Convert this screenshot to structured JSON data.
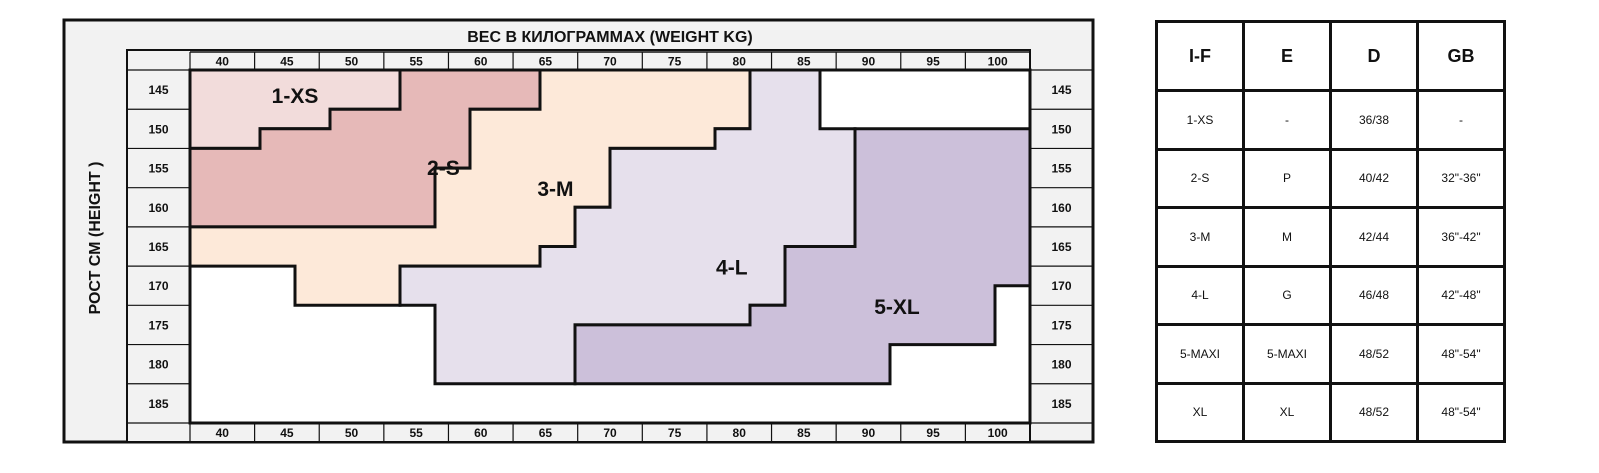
{
  "chart_data": {
    "type": "heatmap",
    "title": "ВЕС В КИЛОГРАММАХ (WEIGHT KG)",
    "xlabel": "ВЕС В КИЛОГРАММАХ (WEIGHT KG)",
    "ylabel": "РОСТ  СМ  (HEIGHT )",
    "x_ticks": [
      40,
      45,
      50,
      55,
      60,
      65,
      70,
      75,
      80,
      85,
      90,
      95,
      100
    ],
    "y_ticks": [
      145,
      150,
      155,
      160,
      165,
      170,
      175,
      180,
      185
    ],
    "xlim": [
      40,
      100
    ],
    "ylim": [
      145,
      185
    ],
    "zones": [
      {
        "label": "1-XS",
        "color": "#f2dcdb",
        "boundary": [
          [
            40,
            145
          ],
          [
            55,
            145
          ],
          [
            55,
            150
          ],
          [
            50,
            150
          ],
          [
            50,
            152.5
          ],
          [
            45,
            152.5
          ],
          [
            45,
            155
          ],
          [
            40,
            155
          ]
        ]
      },
      {
        "label": "2-S",
        "color": "#e6b9b8",
        "boundary": [
          [
            55,
            145
          ],
          [
            65,
            145
          ],
          [
            65,
            150
          ],
          [
            60,
            150
          ],
          [
            60,
            157.5
          ],
          [
            57.5,
            157.5
          ],
          [
            57.5,
            165
          ],
          [
            40,
            165
          ],
          [
            40,
            155
          ],
          [
            45,
            155
          ],
          [
            45,
            152.5
          ],
          [
            50,
            152.5
          ],
          [
            50,
            150
          ],
          [
            55,
            150
          ]
        ]
      },
      {
        "label": "3-M",
        "color": "#fde9d9",
        "boundary": [
          [
            65,
            145
          ],
          [
            80,
            145
          ],
          [
            80,
            152.5
          ],
          [
            77.5,
            152.5
          ],
          [
            77.5,
            155
          ],
          [
            70,
            155
          ],
          [
            70,
            162.5
          ],
          [
            67.5,
            162.5
          ],
          [
            67.5,
            167.5
          ],
          [
            65,
            167.5
          ],
          [
            65,
            170
          ],
          [
            55,
            170
          ],
          [
            55,
            175
          ],
          [
            47.5,
            175
          ],
          [
            47.5,
            170
          ],
          [
            40,
            170
          ],
          [
            40,
            165
          ],
          [
            57.5,
            165
          ],
          [
            57.5,
            157.5
          ],
          [
            60,
            157.5
          ],
          [
            60,
            150
          ],
          [
            65,
            150
          ]
        ]
      },
      {
        "label": "4-L",
        "color": "#e6e0ec",
        "boundary": [
          [
            80,
            145
          ],
          [
            85,
            145
          ],
          [
            85,
            152.5
          ],
          [
            87.5,
            152.5
          ],
          [
            87.5,
            167.5
          ],
          [
            82.5,
            167.5
          ],
          [
            82.5,
            175
          ],
          [
            80,
            175
          ],
          [
            80,
            177.5
          ],
          [
            67.5,
            177.5
          ],
          [
            67.5,
            185
          ],
          [
            57.5,
            185
          ],
          [
            57.5,
            175
          ],
          [
            55,
            175
          ],
          [
            55,
            170
          ],
          [
            65,
            170
          ],
          [
            65,
            167.5
          ],
          [
            67.5,
            167.5
          ],
          [
            67.5,
            162.5
          ],
          [
            70,
            162.5
          ],
          [
            70,
            155
          ],
          [
            77.5,
            155
          ],
          [
            77.5,
            152.5
          ],
          [
            80,
            152.5
          ]
        ]
      },
      {
        "label": "5-XL",
        "color": "#ccc0da",
        "boundary": [
          [
            87.5,
            152.5
          ],
          [
            100,
            152.5
          ],
          [
            100,
            172.5
          ],
          [
            97.5,
            172.5
          ],
          [
            97.5,
            180
          ],
          [
            90,
            180
          ],
          [
            90,
            185
          ],
          [
            67.5,
            185
          ],
          [
            67.5,
            177.5
          ],
          [
            80,
            177.5
          ],
          [
            80,
            175
          ],
          [
            82.5,
            175
          ],
          [
            82.5,
            167.5
          ],
          [
            87.5,
            167.5
          ]
        ]
      }
    ],
    "zone_label_positions": [
      {
        "label": "1-XS",
        "x": 47.5,
        "y": 148.3
      },
      {
        "label": "2-S",
        "x": 58.1,
        "y": 157.5
      },
      {
        "label": "3-M",
        "x": 66.1,
        "y": 160.2
      },
      {
        "label": "4-L",
        "x": 78.7,
        "y": 170.2
      },
      {
        "label": "5-XL",
        "x": 90.5,
        "y": 175.2
      }
    ]
  },
  "size_table": {
    "headers": [
      "I-F",
      "E",
      "D",
      "GB"
    ],
    "rows": [
      [
        "1-XS",
        "-",
        "36/38",
        "-"
      ],
      [
        "2-S",
        "P",
        "40/42",
        "32\"-36\""
      ],
      [
        "3-M",
        "M",
        "42/44",
        "36\"-42\""
      ],
      [
        "4-L",
        "G",
        "46/48",
        "42\"-48\""
      ],
      [
        "5-MAXI",
        "5-MAXI",
        "48/52",
        "48\"-54\""
      ],
      [
        "XL",
        "XL",
        "48/52",
        "48\"-54\""
      ]
    ]
  }
}
